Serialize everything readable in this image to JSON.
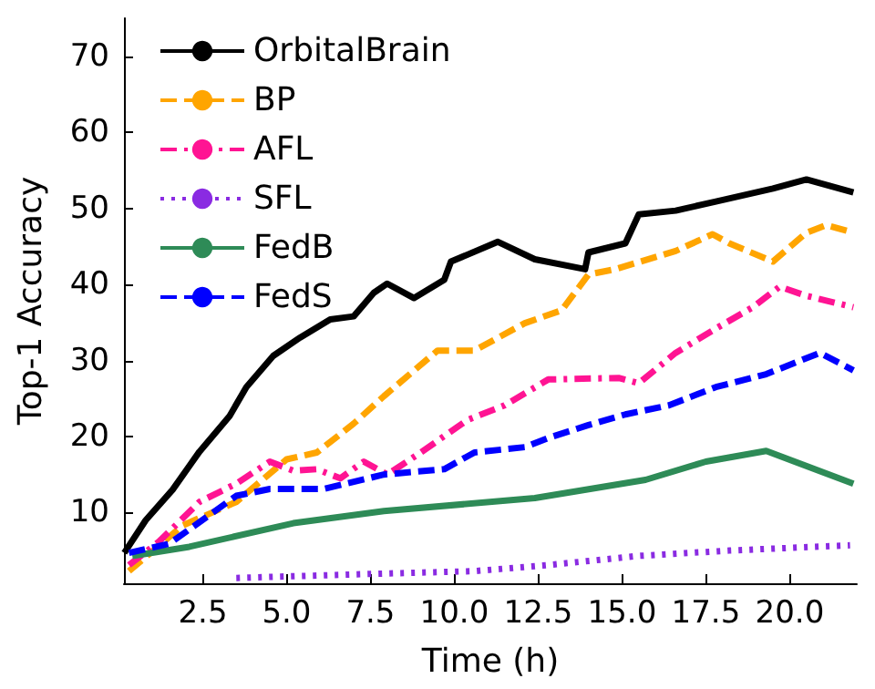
{
  "chart_data": {
    "type": "line",
    "xlabel": "Time (h)",
    "ylabel": "Top-1 Accuracy",
    "xlim": [
      0.15,
      22
    ],
    "ylim": [
      0.7,
      75
    ],
    "xticks": [
      {
        "value": 2.5,
        "label": "2.5"
      },
      {
        "value": 5,
        "label": "5.0"
      },
      {
        "value": 7.5,
        "label": "7.5"
      },
      {
        "value": 10,
        "label": "10.0"
      },
      {
        "value": 12.5,
        "label": "12.5"
      },
      {
        "value": 15,
        "label": "15.0"
      },
      {
        "value": 17.5,
        "label": "17.5"
      },
      {
        "value": 20,
        "label": "20.0"
      }
    ],
    "yticks": [
      10,
      20,
      30,
      40,
      50,
      60,
      70
    ],
    "grid": false,
    "legend": "top left",
    "marker": "none",
    "series": [
      {
        "name": "OrbitalBrain",
        "color": "#000000",
        "line_style": "solid",
        "x": [
          0.16,
          0.8,
          1.6,
          2.4,
          3.3,
          3.8,
          4.6,
          5.4,
          6.3,
          7.0,
          7.6,
          8.0,
          8.8,
          9.7,
          9.9,
          11.3,
          12.4,
          13.9,
          14.0,
          15.1,
          15.5,
          16.6,
          17.8,
          19.5,
          20.5,
          21.9
        ],
        "values": [
          4.7,
          9,
          13,
          18,
          22.7,
          26.5,
          30.6,
          33,
          35.4,
          35.8,
          38.9,
          40.1,
          38.2,
          40.6,
          43,
          45.6,
          43.3,
          42,
          44.2,
          45.4,
          49.2,
          49.7,
          50.9,
          52.6,
          53.8,
          52.1
        ]
      },
      {
        "name": "BP",
        "color": "#ffa500",
        "line_style": "dashed",
        "x": [
          0.3,
          1.9,
          3.5,
          5,
          5.9,
          7.0,
          7.9,
          9.5,
          10.6,
          12.1,
          13.2,
          14,
          14.8,
          16.6,
          17.7,
          18.2,
          19.5,
          20.5,
          21.1,
          21.9
        ],
        "values": [
          2.3,
          8.3,
          11.4,
          17,
          17.9,
          21.7,
          25.3,
          31.3,
          31.3,
          34.9,
          36.6,
          41.3,
          42,
          44.4,
          46.6,
          45.4,
          43,
          46.8,
          47.8,
          46.8
        ]
      },
      {
        "name": "AFL",
        "color": "#ff1493",
        "line_style": "dashdot",
        "x": [
          0.3,
          1.2,
          2.4,
          3.5,
          4.5,
          5.2,
          5.9,
          6.6,
          7.3,
          8.0,
          9.0,
          10.4,
          11.5,
          12.8,
          14.9,
          15.5,
          16.6,
          17.8,
          18.9,
          19.7,
          20.5,
          21.9
        ],
        "values": [
          3.1,
          6.2,
          11.4,
          13.8,
          16.7,
          15.5,
          15.7,
          14.5,
          16.7,
          15,
          17.9,
          22.2,
          24.1,
          27.5,
          27.7,
          27,
          31,
          34.2,
          37,
          39.7,
          38.5,
          37
        ]
      },
      {
        "name": "SFL",
        "color": "#8a2be2",
        "line_style": "dotted",
        "x": [
          3.5,
          7.3,
          10.6,
          12.8,
          15.5,
          18.2,
          21.8
        ],
        "values": [
          1.4,
          1.9,
          2.3,
          3.1,
          4.3,
          5,
          5.7
        ]
      },
      {
        "name": "FedB",
        "color": "#2e8b57",
        "line_style": "solid",
        "x": [
          0.4,
          2.1,
          5.2,
          7.9,
          12.4,
          15.7,
          17.5,
          19.3,
          21.9
        ],
        "values": [
          4.3,
          5.5,
          8.6,
          10.2,
          11.9,
          14.3,
          16.7,
          18.1,
          13.8
        ]
      },
      {
        "name": "FedS",
        "color": "#0000ff",
        "line_style": "dashed",
        "x": [
          0.3,
          1.5,
          3.5,
          4.5,
          6.1,
          7.9,
          9.7,
          10.6,
          12.1,
          12.8,
          14,
          15.1,
          16.4,
          17.8,
          19.3,
          20.9,
          21.9
        ],
        "values": [
          4.7,
          5.9,
          12.2,
          13.1,
          13.1,
          15,
          15.7,
          17.9,
          18.6,
          19.8,
          21.5,
          22.9,
          24.1,
          26.5,
          28.2,
          31,
          28.7
        ]
      }
    ]
  }
}
